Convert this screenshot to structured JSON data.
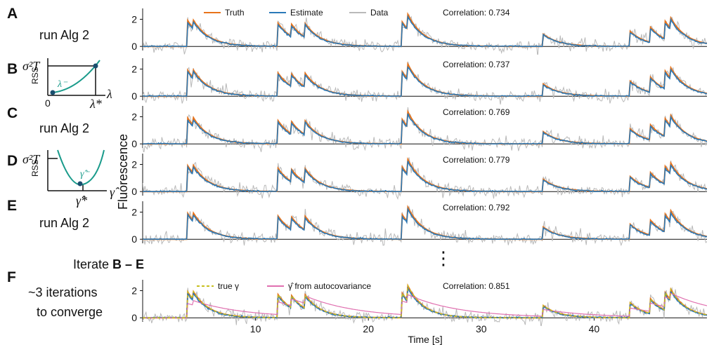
{
  "colors": {
    "truth": "#e8731a",
    "estimate": "#2a79b8",
    "data": "#b9b9b9",
    "teal": "#1a9b8b",
    "true_gamma": "#c8c020",
    "autocov": "#e070b0"
  },
  "left_panels": {
    "A": {
      "letter": "A",
      "text": "run Alg 2"
    },
    "B": {
      "letter": "B",
      "ylabel": "RSS",
      "ymark": "σ²T",
      "curve_label": "λ⁻",
      "x0": "0",
      "xstar": "λ*",
      "xlabel": "λ"
    },
    "C": {
      "letter": "C",
      "text": "run Alg 2"
    },
    "D": {
      "letter": "D",
      "ylabel": "RSS",
      "ymark": "σ²T",
      "curve_label": "γ̂⁻",
      "xstar": "γ̂*",
      "xlabel": "γ̂"
    },
    "E": {
      "letter": "E",
      "text": "run Alg 2"
    },
    "iterate": {
      "prefix": "Iterate ",
      "bold": "B – E"
    },
    "F": {
      "letter": "F",
      "line1": "~3 iterations",
      "line2": "to converge"
    }
  },
  "continuation": "⋮",
  "chart_data": [
    {
      "type": "line",
      "panel": "A",
      "ylim": [
        -0.3,
        2.8
      ],
      "yticks": [
        0,
        2
      ],
      "legend": [
        {
          "name": "Truth",
          "color": "#e8731a"
        },
        {
          "name": "Estimate",
          "color": "#2a79b8"
        },
        {
          "name": "Data",
          "color": "#b9b9b9"
        }
      ],
      "annotation": "Correlation: 0.734",
      "series": [
        {
          "name": "Truth"
        },
        {
          "name": "Estimate"
        },
        {
          "name": "Data"
        }
      ]
    },
    {
      "type": "line",
      "panel": "B",
      "ylim": [
        -0.3,
        2.8
      ],
      "yticks": [
        0,
        2
      ],
      "annotation": "Correlation: 0.737",
      "series": [
        {
          "name": "Truth"
        },
        {
          "name": "Estimate"
        },
        {
          "name": "Data"
        }
      ]
    },
    {
      "type": "line",
      "panel": "C",
      "ylim": [
        -0.3,
        2.8
      ],
      "yticks": [
        0,
        2
      ],
      "annotation": "Correlation: 0.769",
      "series": [
        {
          "name": "Truth"
        },
        {
          "name": "Estimate"
        },
        {
          "name": "Data"
        }
      ]
    },
    {
      "type": "line",
      "panel": "D",
      "ylim": [
        -0.3,
        2.8
      ],
      "yticks": [
        0,
        2
      ],
      "annotation": "Correlation: 0.779",
      "series": [
        {
          "name": "Truth"
        },
        {
          "name": "Estimate"
        },
        {
          "name": "Data"
        }
      ]
    },
    {
      "type": "line",
      "panel": "E",
      "ylim": [
        -0.3,
        2.8
      ],
      "yticks": [
        0,
        2
      ],
      "annotation": "Correlation: 0.792",
      "series": [
        {
          "name": "Truth"
        },
        {
          "name": "Estimate"
        },
        {
          "name": "Data"
        }
      ]
    },
    {
      "type": "line",
      "panel": "F",
      "ylim": [
        -0.3,
        2.8
      ],
      "yticks": [
        0,
        2
      ],
      "legend": [
        {
          "name": "true γ",
          "color": "#c8c020"
        },
        {
          "name": "γ̂ from autocovariance",
          "color": "#e070b0"
        }
      ],
      "annotation": "Correlation: 0.851",
      "series": [
        {
          "name": "Truth"
        },
        {
          "name": "Estimate"
        },
        {
          "name": "Data"
        },
        {
          "name": "true γ"
        },
        {
          "name": "γ̂ from autocovariance"
        }
      ]
    }
  ],
  "shared": {
    "ylabel": "Fluorescence",
    "xlabel": "Time [s]",
    "xlim": [
      0,
      50
    ],
    "xticks": [
      10,
      20,
      30,
      40
    ],
    "xticklabels": [
      "10",
      "20",
      "30",
      "40"
    ],
    "events": [
      {
        "t": 4.0,
        "a": 1.9
      },
      {
        "t": 4.5,
        "a": 0.6
      },
      {
        "t": 12.0,
        "a": 1.7
      },
      {
        "t": 13.2,
        "a": 0.9
      },
      {
        "t": 14.4,
        "a": 1.0
      },
      {
        "t": 23.0,
        "a": 1.8
      },
      {
        "t": 23.5,
        "a": 1.1
      },
      {
        "t": 35.5,
        "a": 0.9
      },
      {
        "t": 43.2,
        "a": 1.1
      },
      {
        "t": 45.0,
        "a": 1.1
      },
      {
        "t": 46.3,
        "a": 1.3
      },
      {
        "t": 46.8,
        "a": 0.8
      }
    ],
    "decay_tau_s": 1.4
  }
}
